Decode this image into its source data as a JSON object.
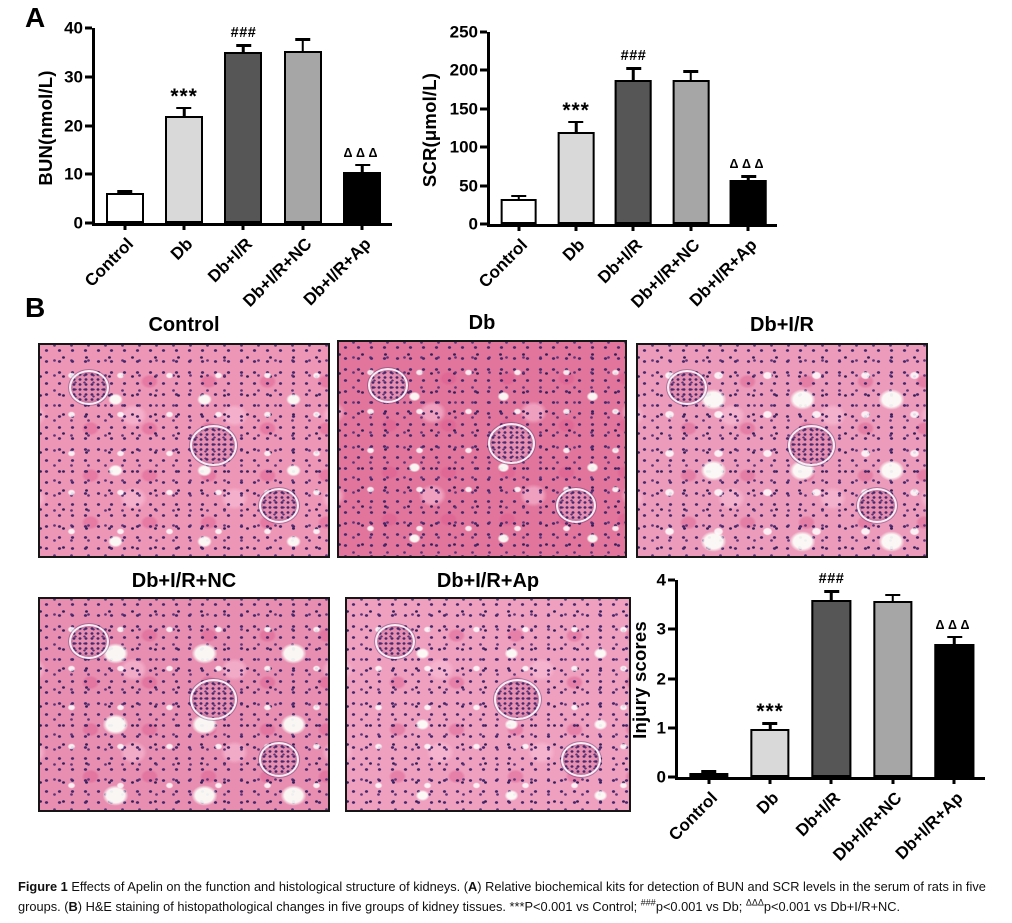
{
  "panels": {
    "a_label": "A",
    "b_label": "B"
  },
  "histology": {
    "titles": [
      "Control",
      "Db",
      "Db+I/R",
      "Db+I/R+NC",
      "Db+I/R+Ap"
    ]
  },
  "caption": {
    "parts": [
      "Figure 1 ",
      "Effects of Apelin on the function and histological structure of kidneys. (",
      "A",
      ") Relative biochemical kits for detection of BUN and SCR levels in the serum of rats in five groups. (",
      "B",
      ") H&E staining of histopathological changes in five groups of kidney tissues. ***P<0.001 vs Control; ",
      "###",
      "p<0.001 vs Db; ",
      "ΔΔΔ",
      "p<0.001 vs Db+I/R+NC."
    ]
  },
  "chart_data": [
    {
      "type": "bar",
      "title": "",
      "categories": [
        "Control",
        "Db",
        "Db+I/R",
        "Db+I/R+NC",
        "Db+I/R+Ap"
      ],
      "values": [
        6.2,
        22,
        35,
        35.2,
        10.4
      ],
      "errors": [
        0.3,
        1.6,
        1.5,
        2.5,
        1.6
      ],
      "annotations": [
        "",
        "***",
        "###",
        "",
        "ΔΔΔ"
      ],
      "xlabel": "",
      "ylabel": "BUN(nmol/L)",
      "ylim": [
        0,
        40
      ],
      "yticks": [
        0,
        10,
        20,
        30,
        40
      ],
      "bar_colors": [
        "#ffffff",
        "#d9d9d9",
        "#565656",
        "#a6a6a6",
        "#000000"
      ],
      "grid": false,
      "legend": "none"
    },
    {
      "type": "bar",
      "title": "",
      "categories": [
        "Control",
        "Db",
        "Db+I/R",
        "Db+I/R+NC",
        "Db+I/R+Ap"
      ],
      "values": [
        33,
        120,
        188,
        187,
        57
      ],
      "errors": [
        4,
        13,
        15,
        12,
        5
      ],
      "annotations": [
        "",
        "***",
        "###",
        "",
        "ΔΔΔ"
      ],
      "xlabel": "",
      "ylabel": "SCR(μmol/L)",
      "ylim": [
        0,
        250
      ],
      "yticks": [
        0,
        50,
        100,
        150,
        200,
        250
      ],
      "bar_colors": [
        "#ffffff",
        "#d9d9d9",
        "#565656",
        "#a6a6a6",
        "#000000"
      ],
      "grid": false,
      "legend": "none"
    },
    {
      "type": "bar",
      "title": "",
      "categories": [
        "Control",
        "Db",
        "Db+I/R",
        "Db+I/R+NC",
        "Db+I/R+Ap"
      ],
      "values": [
        0.07,
        0.97,
        3.6,
        3.58,
        2.7
      ],
      "errors": [
        0.05,
        0.12,
        0.17,
        0.12,
        0.15
      ],
      "annotations": [
        "",
        "***",
        "###",
        "",
        "ΔΔΔ"
      ],
      "xlabel": "",
      "ylabel": "Injury scores",
      "ylim": [
        0,
        4
      ],
      "yticks": [
        0,
        1,
        2,
        3,
        4
      ],
      "bar_colors": [
        "#ffffff",
        "#d9d9d9",
        "#565656",
        "#a6a6a6",
        "#000000"
      ],
      "grid": false,
      "legend": "none"
    }
  ]
}
